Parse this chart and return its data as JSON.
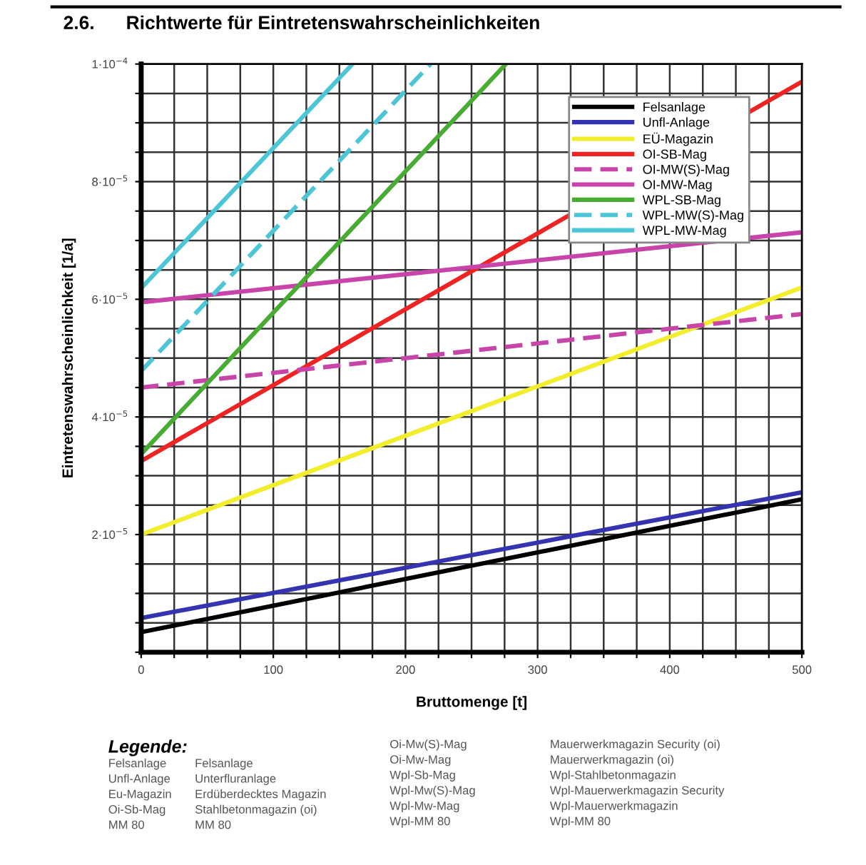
{
  "chart_data": {
    "type": "line",
    "title": "2.6.      Richtwerte für Eintretenswahrscheinlichkeiten",
    "xlabel": "Bruttomenge [t]",
    "ylabel": "Eintretenswahrscheinlichkeit [1/a]",
    "xlim": [
      0,
      500
    ],
    "ylim": [
      0,
      0.0001
    ],
    "xticks": [
      0,
      {
        "value": 25,
        "label": null
      },
      {
        "value": 50,
        "label": null
      },
      {
        "value": 75,
        "label": null
      },
      100,
      {
        "value": 125,
        "label": null
      },
      {
        "value": 150,
        "label": null
      },
      {
        "value": 175,
        "label": null
      },
      200,
      {
        "value": 225,
        "label": null
      },
      {
        "value": 250,
        "label": null
      },
      {
        "value": 275,
        "label": null
      },
      300,
      {
        "value": 325,
        "label": null
      },
      {
        "value": 350,
        "label": null
      },
      {
        "value": 375,
        "label": null
      },
      400,
      {
        "value": 425,
        "label": null
      },
      {
        "value": 450,
        "label": null
      },
      {
        "value": 475,
        "label": null
      },
      500
    ],
    "yticks": [
      {
        "value": 0,
        "label": null
      },
      {
        "value": 5e-06,
        "label": null
      },
      {
        "value": 1e-05,
        "label": null
      },
      {
        "value": 1.5e-05,
        "label": null
      },
      {
        "value": 2e-05,
        "label": "2·10$^{−5}$"
      },
      {
        "value": 2.5e-05,
        "label": null
      },
      {
        "value": 3e-05,
        "label": null
      },
      {
        "value": 3.5e-05,
        "label": null
      },
      {
        "value": 4e-05,
        "label": "4·10$^{−5}$"
      },
      {
        "value": 4.5e-05,
        "label": null
      },
      {
        "value": 5e-05,
        "label": null
      },
      {
        "value": 5.5e-05,
        "label": null
      },
      {
        "value": 6e-05,
        "label": "6·10$^{−5}$"
      },
      {
        "value": 6.5e-05,
        "label": null
      },
      {
        "value": 7e-05,
        "label": null
      },
      {
        "value": 7.5e-05,
        "label": null
      },
      {
        "value": 8e-05,
        "label": "8·10$^{−5}$"
      },
      {
        "value": 8.5e-05,
        "label": null
      },
      {
        "value": 9e-05,
        "label": null
      },
      {
        "value": 9.5e-05,
        "label": null
      },
      {
        "value": 0.0001,
        "label": "1·10$^{−4}$"
      }
    ],
    "grid": true,
    "legend": "top right",
    "marker": "none",
    "series": [
      {
        "name": "Felsanlage",
        "color": "#000000",
        "x": [
          0,
          500
        ],
        "values": [
          3.4e-06,
          2.6e-05
        ]
      },
      {
        "name": "Unfl-Anlage",
        "color": "#3434b0",
        "x": [
          0,
          500
        ],
        "values": [
          5.8e-06,
          2.72e-05
        ]
      },
      {
        "name": "EÜ-Magazin",
        "color": "#f2ee2e",
        "x": [
          0,
          500
        ],
        "values": [
          2e-05,
          6.2e-05
        ]
      },
      {
        "name": "OI-SB-Mag",
        "color": "#ee2424",
        "x": [
          0,
          500
        ],
        "values": [
          3.25e-05,
          9.7e-05
        ]
      },
      {
        "name": "OI-MW(S)-Mag",
        "color": "#c944a8",
        "line_style": "dashed",
        "x": [
          0,
          500
        ],
        "values": [
          4.5e-05,
          5.75e-05
        ]
      },
      {
        "name": "OI-MW-Mag",
        "color": "#c944a8",
        "x": [
          0,
          500
        ],
        "values": [
          5.95e-05,
          7.14e-05
        ]
      },
      {
        "name": "WPL-SB-Mag",
        "color": "#48ac34",
        "x": [
          0,
          276
        ],
        "values": [
          3.37e-05,
          0.0001
        ]
      },
      {
        "name": "WPL-MW(S)-Mag",
        "color": "#4cc6d6",
        "line_style": "dashed",
        "x": [
          0,
          219
        ],
        "values": [
          4.78e-05,
          0.0001
        ]
      },
      {
        "name": "WPL-MW-Mag",
        "color": "#4cc6d6",
        "x": [
          0,
          160
        ],
        "values": [
          6.19e-05,
          0.0001
        ]
      }
    ],
    "annotations": [
      "Legende:",
      "Felsanlage\nUnfl-Anlage\nEu-Magazin\nOi-Sb-Mag\nMM 80",
      "Felsanlage\nUnterfluranlage\nErdüberdecktes Magazin\nStahlbetonmagazin (oi)\nMM 80",
      "Oi-Mw(S)-Mag\nOi-Mw-Mag\nWpl-Sb-Mag\nWpl-Mw(S)-Mag\nWpl-Mw-Mag\nWpl-MM 80",
      "Mauerwerkmagazin Security (oi)\nMauerwerkmagazin (oi)\nWpl-Stahlbetonmagazin\nWpl-Mauerwerkmagazin Security\nWpl-Mauerwerkmagazin\nWpl-MM 80"
    ]
  }
}
